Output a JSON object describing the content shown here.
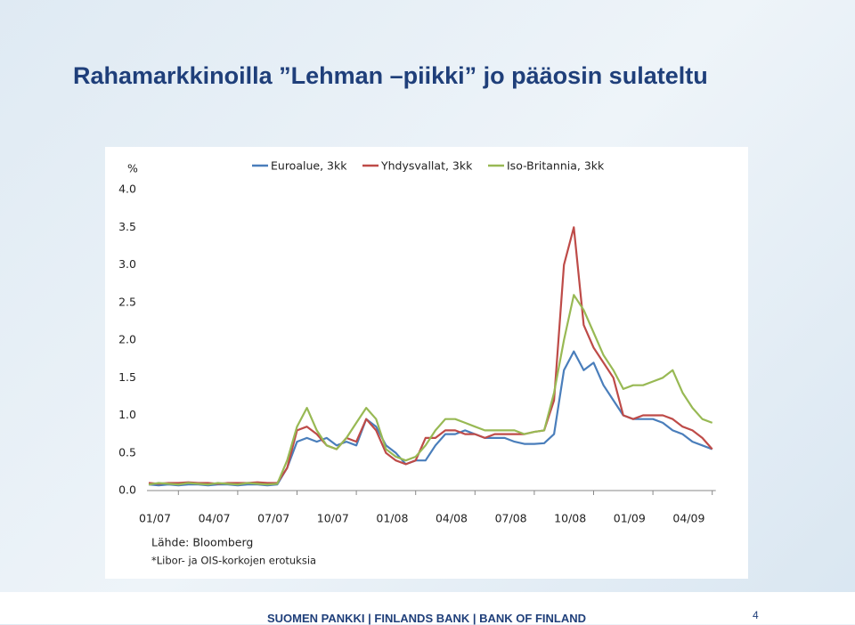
{
  "slide": {
    "title": "Rahamarkkinoilla ”Lehman –piikki” jo pääosin sulateltu",
    "source": "Lähde: Bloomberg",
    "note": "*Libor- ja OIS-korkojen erotuksia",
    "footer": "SUOMEN PANKKI | FINLANDS BANK | BANK OF FINLAND",
    "page": "4"
  },
  "chart_data": {
    "type": "line",
    "y_label": "%",
    "categories": [
      "01/07",
      null,
      null,
      null,
      null,
      null,
      "04/07",
      null,
      null,
      null,
      null,
      null,
      "07/07",
      null,
      null,
      null,
      null,
      null,
      "10/07",
      null,
      null,
      null,
      null,
      null,
      "01/08",
      null,
      null,
      null,
      null,
      null,
      "04/08",
      null,
      null,
      null,
      null,
      null,
      "07/08",
      null,
      null,
      null,
      null,
      null,
      "10/08",
      null,
      null,
      null,
      null,
      null,
      "01/09",
      null,
      null,
      null,
      null,
      null,
      "04/09",
      null,
      null,
      null
    ],
    "series": [
      {
        "name": "Euroalue, 3kk",
        "color": "#4a7ebb",
        "values": [
          0.08,
          0.07,
          0.08,
          0.07,
          0.08,
          0.08,
          0.07,
          0.08,
          0.08,
          0.07,
          0.08,
          0.08,
          0.07,
          0.08,
          0.3,
          0.65,
          0.7,
          0.65,
          0.7,
          0.6,
          0.65,
          0.6,
          0.95,
          0.85,
          0.6,
          0.5,
          0.35,
          0.4,
          0.4,
          0.6,
          0.75,
          0.75,
          0.8,
          0.75,
          0.7,
          0.7,
          0.7,
          0.65,
          0.62,
          0.62,
          0.63,
          0.75,
          1.6,
          1.85,
          1.6,
          1.7,
          1.4,
          1.2,
          1.0,
          0.95,
          0.95,
          0.95,
          0.9,
          0.8,
          0.75,
          0.65,
          0.6,
          0.55
        ]
      },
      {
        "name": "Yhdysvallat, 3kk",
        "color": "#be4b48",
        "values": [
          0.1,
          0.09,
          0.1,
          0.1,
          0.11,
          0.1,
          0.1,
          0.09,
          0.1,
          0.1,
          0.1,
          0.11,
          0.1,
          0.1,
          0.3,
          0.8,
          0.85,
          0.75,
          0.6,
          0.55,
          0.7,
          0.65,
          0.95,
          0.8,
          0.5,
          0.4,
          0.35,
          0.4,
          0.7,
          0.7,
          0.8,
          0.8,
          0.75,
          0.75,
          0.7,
          0.75,
          0.75,
          0.75,
          0.75,
          0.78,
          0.8,
          1.2,
          3.0,
          3.5,
          2.2,
          1.9,
          1.7,
          1.5,
          1.0,
          0.95,
          1.0,
          1.0,
          1.0,
          0.95,
          0.85,
          0.8,
          0.7,
          0.55
        ]
      },
      {
        "name": "Iso-Britannia, 3kk",
        "color": "#98b954",
        "values": [
          0.08,
          0.1,
          0.09,
          0.08,
          0.1,
          0.09,
          0.08,
          0.1,
          0.09,
          0.08,
          0.1,
          0.09,
          0.08,
          0.09,
          0.4,
          0.85,
          1.1,
          0.8,
          0.6,
          0.55,
          0.7,
          0.9,
          1.1,
          0.95,
          0.55,
          0.45,
          0.4,
          0.45,
          0.6,
          0.8,
          0.95,
          0.95,
          0.9,
          0.85,
          0.8,
          0.8,
          0.8,
          0.8,
          0.75,
          0.78,
          0.8,
          1.3,
          2.0,
          2.6,
          2.4,
          2.1,
          1.8,
          1.6,
          1.35,
          1.4,
          1.4,
          1.45,
          1.5,
          1.6,
          1.3,
          1.1,
          0.95,
          0.9
        ]
      }
    ],
    "ylim": [
      0,
      4
    ],
    "yticks": [
      {
        "value": 0,
        "label": "0.0"
      },
      0.5,
      {
        "value": 1,
        "label": "1.0"
      },
      1.5,
      {
        "value": 2,
        "label": "2.0"
      },
      2.5,
      {
        "value": 3,
        "label": "3.0"
      },
      3.5,
      {
        "value": 4,
        "label": "4.0"
      }
    ],
    "grid": false,
    "legend": "top"
  }
}
